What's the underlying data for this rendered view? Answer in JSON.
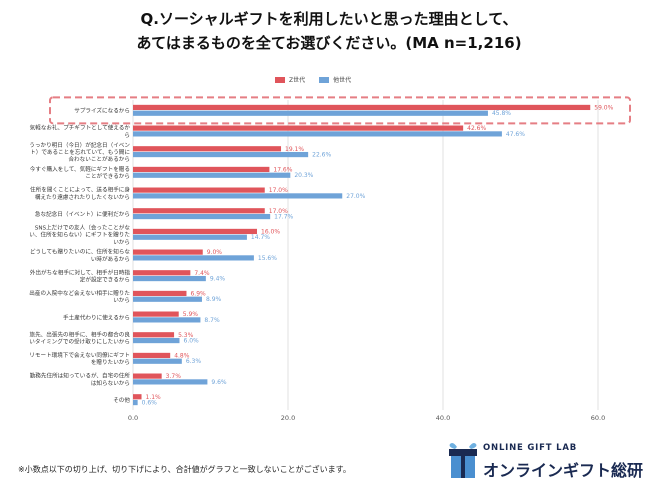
{
  "title_line1": "Q.ソーシャルギフトを利用したいと思った理由として、",
  "title_line2": "あてはまるものを全てお選びください。(MA n=1,216)",
  "footnote": "※小数点以下の切り上げ、切り下げにより、合計値がグラフと一致しないことがございます。",
  "logo": {
    "top": "ONLINE GIFT LAB",
    "main": "オンラインギフト総研",
    "icon": "gift-box-icon"
  },
  "colors": {
    "z": "#e0555b",
    "other": "#6fa3d8",
    "highlight": "#e57e84",
    "grid": "#d9d9d9"
  },
  "chart_data": {
    "type": "bar",
    "orientation": "horizontal",
    "xlim": [
      0,
      60
    ],
    "xticks": [
      "0.0",
      "20.0",
      "40.0",
      "60.0"
    ],
    "legend": [
      "Z世代",
      "他世代"
    ],
    "categories": [
      [
        "サプライズになるから"
      ],
      [
        "気軽なお礼、プチギフトとして使えるか",
        "ら"
      ],
      [
        "うっかり明日（今日）が記念日（イベン",
        "ト）であることを忘れていて、もう間に",
        "合わないことがあるから"
      ],
      [
        "今すぐ購入をして、気軽にギフトを贈る",
        "ことができるから"
      ],
      [
        "住所を聞くことによって、送る相手に身",
        "構えたり遠慮されたりしたくないから"
      ],
      [
        "急な記念日（イベント）に便利だから"
      ],
      [
        "SNS上だけでの友人（会ったことがな",
        "い、住所を知らない）にギフトを贈りた",
        "いから"
      ],
      [
        "どうしても贈りたいのに、住所を知らな",
        "い時があるから"
      ],
      [
        "外出がちな相手に対して、相手が日時指",
        "定が設定できるから"
      ],
      [
        "出産の入院中など会えない相手に贈りた",
        "いから"
      ],
      [
        "手土産代わりに使えるから"
      ],
      [
        "旅先、出張先の相手に、相手の都合の良",
        "いタイミングでの受け取りにしたいから"
      ],
      [
        "リモート環境下で会えない同僚にギフト",
        "を贈りたいから"
      ],
      [
        "勤務先住所は知っているが、自宅の住所",
        "は知らないから"
      ],
      [
        "その他"
      ]
    ],
    "series": [
      {
        "name": "Z世代",
        "values": [
          59.0,
          42.6,
          19.1,
          17.6,
          17.0,
          17.0,
          16.0,
          9.0,
          7.4,
          6.9,
          5.9,
          5.3,
          4.8,
          3.7,
          1.1
        ]
      },
      {
        "name": "他世代",
        "values": [
          45.8,
          47.6,
          22.6,
          20.3,
          27.0,
          17.7,
          14.7,
          15.6,
          9.4,
          8.9,
          8.7,
          6.0,
          6.3,
          9.6,
          0.6
        ]
      }
    ],
    "value_labels": [
      [
        "59.0%",
        "42.6%",
        "19.1%",
        "17.6%",
        "17.0%",
        "17.0%",
        "16.0%",
        "9.0%",
        "7.4%",
        "6.9%",
        "5.9%",
        "5.3%",
        "4.8%",
        "3.7%",
        "1.1%"
      ],
      [
        "45.8%",
        "47.6%",
        "22.6%",
        "20.3%",
        "27.0%",
        "17.7%",
        "14.7%",
        "15.6%",
        "9.4%",
        "8.9%",
        "8.7%",
        "6.0%",
        "6.3%",
        "9.6%",
        "0.6%"
      ]
    ],
    "highlighted_category": "サプライズになるから"
  }
}
